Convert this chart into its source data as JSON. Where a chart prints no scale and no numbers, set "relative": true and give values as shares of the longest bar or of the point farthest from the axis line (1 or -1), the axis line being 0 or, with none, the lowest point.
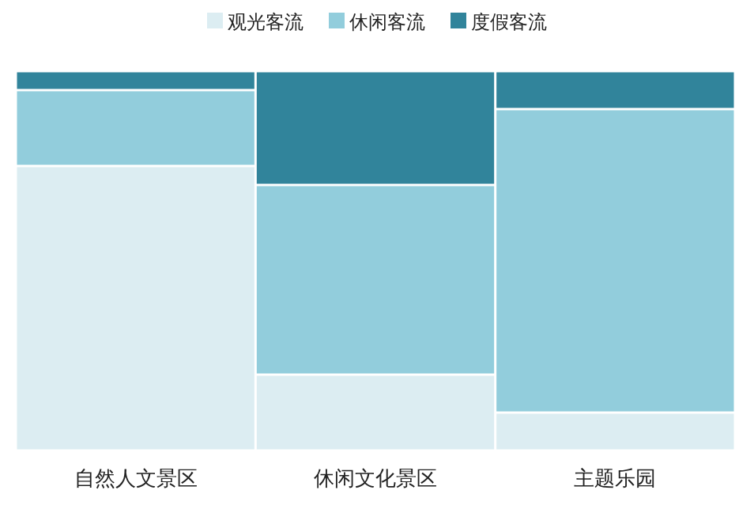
{
  "chart_data": {
    "type": "bar",
    "stacked": true,
    "relative": true,
    "legend": "top",
    "categories": [
      "自然人文景区",
      "休闲文化景区",
      "主题乐园"
    ],
    "series": [
      {
        "name": "观光客流",
        "color": "#dcedf2",
        "values": [
          0.75,
          0.2,
          0.1
        ]
      },
      {
        "name": "休闲客流",
        "color": "#92cddc",
        "values": [
          0.2,
          0.5,
          0.8
        ]
      },
      {
        "name": "度假客流",
        "color": "#31849b",
        "values": [
          0.05,
          0.3,
          0.1
        ]
      }
    ]
  }
}
